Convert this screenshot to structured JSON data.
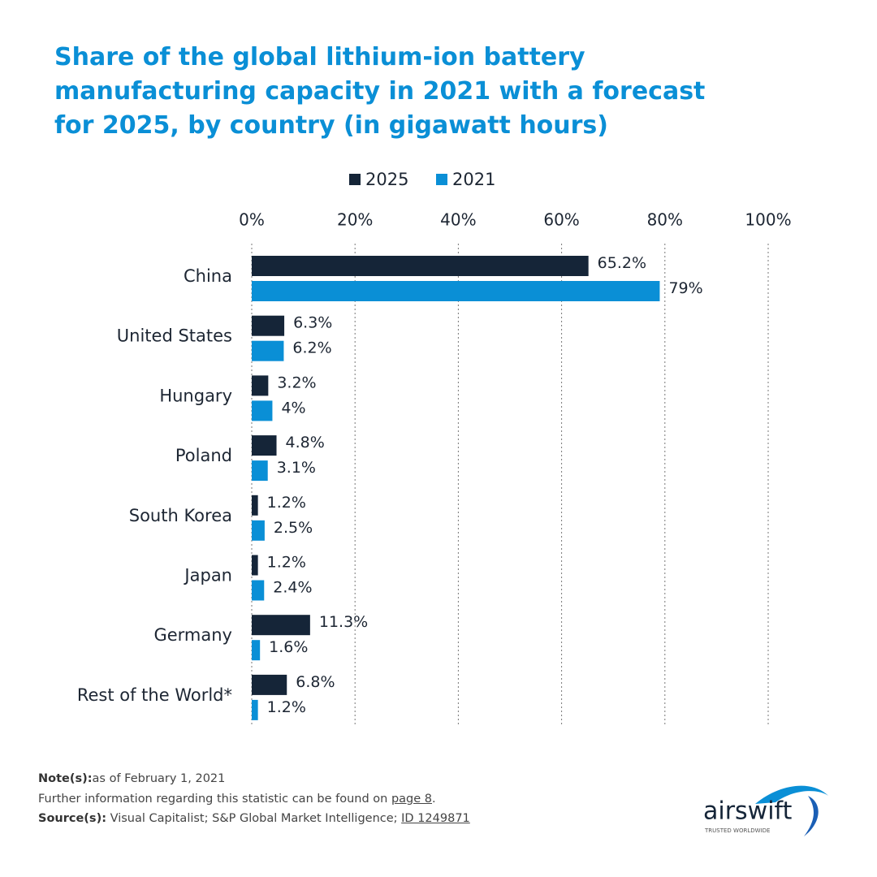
{
  "chart_data": {
    "type": "hbar",
    "title": "Share of the global lithium-ion battery manufacturing capacity in 2021 with a forecast for 2025, by country (in gigawatt hours)",
    "categories": [
      "China",
      "United States",
      "Hungary",
      "Poland",
      "South Korea",
      "Japan",
      "Germany",
      "Rest of the World*"
    ],
    "series": [
      {
        "name": "2025",
        "color": "#152538",
        "values": [
          65.2,
          6.3,
          3.2,
          4.8,
          1.2,
          1.2,
          11.3,
          6.8
        ],
        "value_labels": [
          "65.2%",
          "6.3%",
          "3.2%",
          "4.8%",
          "1.2%",
          "1.2%",
          "11.3%",
          "6.8%"
        ]
      },
      {
        "name": "2021",
        "color": "#0a8fd6",
        "values": [
          79,
          6.2,
          4,
          3.1,
          2.5,
          2.4,
          1.6,
          1.2
        ],
        "value_labels": [
          "79%",
          "6.2%",
          "4%",
          "3.1%",
          "2.5%",
          "2.4%",
          "1.6%",
          "1.2%"
        ]
      }
    ],
    "xlim": [
      0,
      100
    ],
    "xticks": [
      {
        "value": 0,
        "label": "0%"
      },
      {
        "value": 20,
        "label": "20%"
      },
      {
        "value": 40,
        "label": "40%"
      },
      {
        "value": 60,
        "label": "60%"
      },
      {
        "value": 80,
        "label": "80%"
      },
      {
        "value": 100,
        "label": "100%"
      }
    ],
    "grid": true
  },
  "footer": {
    "note_label": "Note(s):",
    "note": "as of February 1, 2021",
    "further": "Further information regarding this statistic can be found on",
    "further_link": "page 8",
    "further_end": ".",
    "source_label": "Source(s):",
    "source": "Visual Capitalist; S&P Global Market Intelligence;",
    "source_id": "ID 1249871"
  },
  "logo": {
    "name": "airswift",
    "tagline": "TRUSTED WORLDWIDE"
  }
}
